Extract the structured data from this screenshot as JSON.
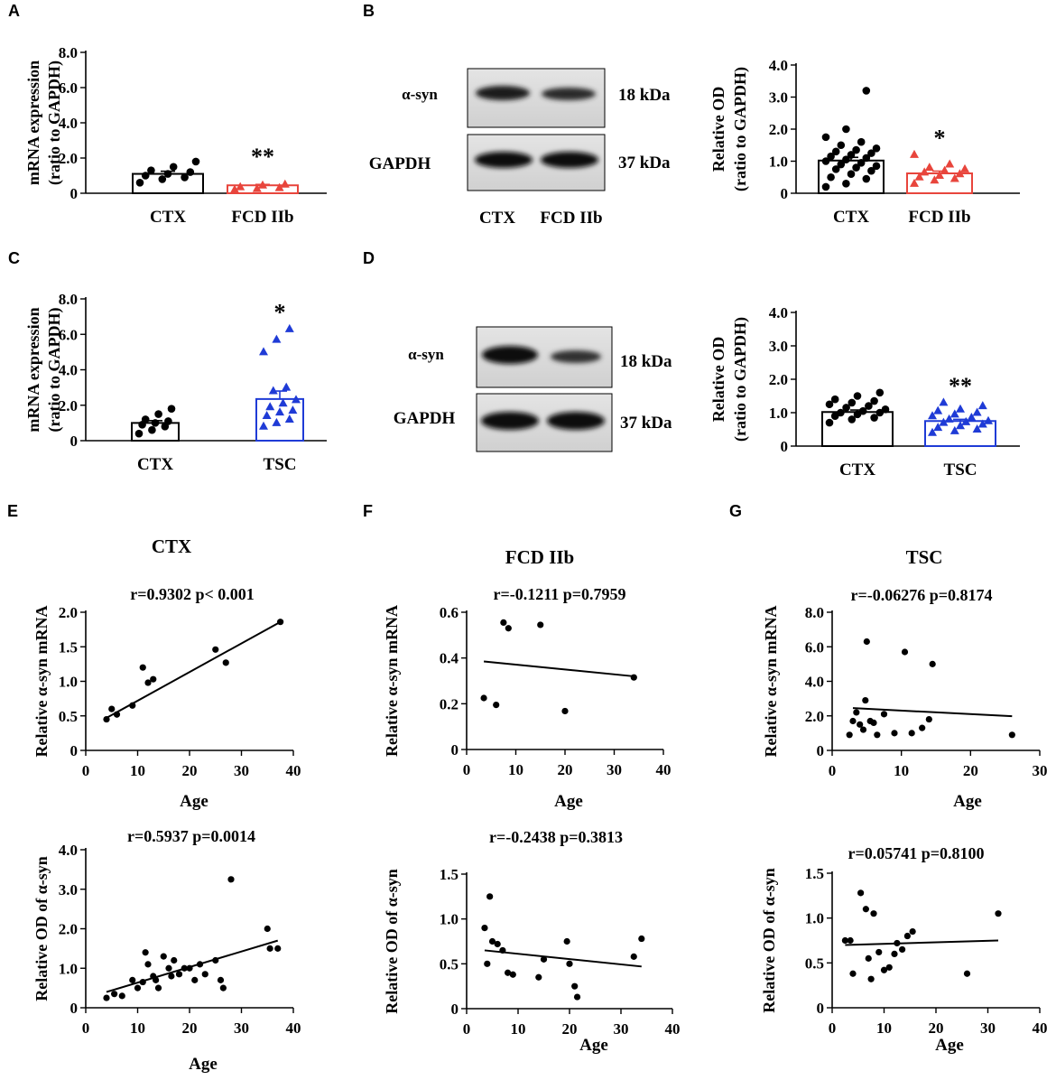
{
  "colors": {
    "black": "#000000",
    "red": "#e8453c",
    "blue": "#1f3bd6",
    "gray": "#d8d8d8"
  },
  "chart_data": [
    {
      "id": "A",
      "type": "bar",
      "panel_label": "A",
      "ylabel_lines": [
        "mRNA expression",
        "(ratio to GAPDH)"
      ],
      "ylim": [
        0,
        8
      ],
      "yticks": [
        0,
        2,
        4,
        6,
        8
      ],
      "ytick_labels": [
        "0",
        "2.0",
        "4.0",
        "6.0",
        "8.0"
      ],
      "categories": [
        "CTX",
        "FCD IIb"
      ],
      "series": [
        {
          "name": "CTX",
          "color": "black",
          "marker": "circle",
          "mean": 1.1,
          "sem": 0.15,
          "points": [
            0.6,
            0.8,
            0.9,
            1.0,
            1.1,
            1.2,
            1.3,
            1.5,
            1.8
          ]
        },
        {
          "name": "FCD IIb",
          "color": "red",
          "marker": "triangle",
          "mean": 0.45,
          "sem": 0.05,
          "points": [
            0.2,
            0.25,
            0.3,
            0.35,
            0.45,
            0.5
          ],
          "sig": "**"
        }
      ]
    },
    {
      "id": "B",
      "type": "bar",
      "panel_label": "B",
      "ylabel_lines": [
        "Relative OD",
        "(ratio to GAPDH)"
      ],
      "ylim": [
        0,
        4
      ],
      "yticks": [
        0,
        1,
        2,
        3,
        4
      ],
      "ytick_labels": [
        "0",
        "1.0",
        "2.0",
        "3.0",
        "4.0"
      ],
      "categories": [
        "CTX",
        "FCD IIb"
      ],
      "series": [
        {
          "name": "CTX",
          "color": "black",
          "marker": "circle",
          "mean": 1.02,
          "sem": 0.1,
          "points": [
            0.2,
            0.3,
            0.45,
            0.5,
            0.6,
            0.7,
            0.75,
            0.8,
            0.85,
            0.9,
            0.95,
            1.0,
            1.05,
            1.1,
            1.15,
            1.2,
            1.25,
            1.3,
            1.35,
            1.4,
            1.5,
            1.6,
            1.75,
            2.0,
            3.2
          ]
        },
        {
          "name": "FCD IIb",
          "color": "red",
          "marker": "triangle",
          "mean": 0.62,
          "sem": 0.07,
          "points": [
            0.3,
            0.4,
            0.45,
            0.5,
            0.55,
            0.6,
            0.65,
            0.7,
            0.75,
            0.8,
            0.9,
            1.2
          ],
          "sig": "*"
        }
      ]
    },
    {
      "id": "C",
      "type": "bar",
      "panel_label": "C",
      "ylabel_lines": [
        "mRNA expression",
        "(ratio to GAPDH)"
      ],
      "ylim": [
        0,
        8
      ],
      "yticks": [
        0,
        2,
        4,
        6,
        8
      ],
      "ytick_labels": [
        "0",
        "2.0",
        "4.0",
        "6.0",
        "8.0"
      ],
      "categories": [
        "CTX",
        "TSC"
      ],
      "series": [
        {
          "name": "CTX",
          "color": "black",
          "marker": "circle",
          "mean": 1.0,
          "sem": 0.13,
          "points": [
            0.4,
            0.6,
            0.8,
            0.9,
            1.0,
            1.1,
            1.2,
            1.5,
            1.8
          ]
        },
        {
          "name": "TSC",
          "color": "blue",
          "marker": "triangle",
          "mean": 2.35,
          "sem": 0.45,
          "points": [
            0.8,
            1.0,
            1.2,
            1.4,
            1.6,
            1.7,
            1.9,
            2.1,
            2.3,
            2.8,
            3.0,
            5.0,
            5.7,
            6.3
          ],
          "sig": "*"
        }
      ]
    },
    {
      "id": "D",
      "type": "bar",
      "panel_label": "D",
      "ylabel_lines": [
        "Relative OD",
        "(ratio to GAPDH)"
      ],
      "ylim": [
        0,
        4
      ],
      "yticks": [
        0,
        1,
        2,
        3,
        4
      ],
      "ytick_labels": [
        "0",
        "1.0",
        "2.0",
        "3.0",
        "4.0"
      ],
      "categories": [
        "CTX",
        "TSC"
      ],
      "series": [
        {
          "name": "CTX",
          "color": "black",
          "marker": "circle",
          "mean": 1.02,
          "sem": 0.06,
          "points": [
            0.7,
            0.8,
            0.85,
            0.9,
            0.95,
            1.0,
            1.0,
            1.05,
            1.1,
            1.15,
            1.2,
            1.25,
            1.3,
            1.35,
            1.4,
            1.5,
            1.6
          ]
        },
        {
          "name": "TSC",
          "color": "blue",
          "marker": "triangle",
          "mean": 0.75,
          "sem": 0.05,
          "points": [
            0.4,
            0.45,
            0.5,
            0.55,
            0.6,
            0.65,
            0.7,
            0.72,
            0.75,
            0.8,
            0.85,
            0.9,
            0.95,
            1.0,
            1.05,
            1.1,
            1.2,
            1.3
          ],
          "sig": "**"
        }
      ]
    },
    {
      "id": "E1",
      "type": "scatter",
      "panel_label": "E",
      "title": "CTX",
      "stats": "r=0.9302    p< 0.001",
      "ylabel": "Relative α-syn mRNA",
      "xlabel": "Age",
      "xlim": [
        0,
        40
      ],
      "xticks": [
        0,
        10,
        20,
        30,
        40
      ],
      "xtick_labels": [
        "0",
        "10",
        "20",
        "30",
        "40"
      ],
      "ylim": [
        0,
        2.0
      ],
      "yticks": [
        0,
        0.5,
        1.0,
        1.5,
        2.0
      ],
      "ytick_labels": [
        "0",
        "0.5",
        "1.0",
        "1.5",
        "2.0"
      ],
      "points": [
        [
          4,
          0.45
        ],
        [
          5,
          0.6
        ],
        [
          6,
          0.52
        ],
        [
          9,
          0.65
        ],
        [
          11,
          1.2
        ],
        [
          12,
          0.98
        ],
        [
          13,
          1.03
        ],
        [
          25,
          1.46
        ],
        [
          27,
          1.27
        ],
        [
          37.5,
          1.86
        ]
      ],
      "fit": [
        [
          4,
          0.47
        ],
        [
          37.5,
          1.86
        ]
      ]
    },
    {
      "id": "E2",
      "type": "scatter",
      "stats": "r=0.5937   p=0.0014",
      "ylabel": "Relative OD of  α-syn",
      "xlabel": "Age",
      "xlim": [
        0,
        40
      ],
      "xticks": [
        0,
        10,
        20,
        30,
        40
      ],
      "xtick_labels": [
        "0",
        "10",
        "20",
        "30",
        "40"
      ],
      "ylim": [
        0,
        4.0
      ],
      "yticks": [
        0,
        1,
        2,
        3,
        4
      ],
      "ytick_labels": [
        "0",
        "1.0",
        "2.0",
        "3.0",
        "4.0"
      ],
      "points": [
        [
          4,
          0.25
        ],
        [
          5.5,
          0.35
        ],
        [
          7,
          0.3
        ],
        [
          9,
          0.7
        ],
        [
          10,
          0.5
        ],
        [
          11,
          0.65
        ],
        [
          11.5,
          1.4
        ],
        [
          12,
          1.1
        ],
        [
          13,
          0.8
        ],
        [
          13.5,
          0.7
        ],
        [
          14,
          0.5
        ],
        [
          15,
          1.3
        ],
        [
          16,
          1.0
        ],
        [
          16.5,
          0.8
        ],
        [
          17,
          1.2
        ],
        [
          18,
          0.85
        ],
        [
          19,
          1.0
        ],
        [
          20,
          1.0
        ],
        [
          21,
          0.7
        ],
        [
          22,
          1.1
        ],
        [
          23,
          0.85
        ],
        [
          25,
          1.2
        ],
        [
          26,
          0.7
        ],
        [
          26.5,
          0.5
        ],
        [
          28,
          3.25
        ],
        [
          35,
          2.0
        ],
        [
          35.5,
          1.5
        ],
        [
          37,
          1.5
        ]
      ],
      "fit": [
        [
          4,
          0.4
        ],
        [
          37,
          1.7
        ]
      ]
    },
    {
      "id": "F1",
      "type": "scatter",
      "panel_label": "F",
      "title": "FCD IIb",
      "stats": "r=-0.1211   p=0.7959",
      "ylabel": "Relative α-syn mRNA",
      "xlabel": "Age",
      "xlim": [
        0,
        40
      ],
      "xticks": [
        0,
        10,
        20,
        30,
        40
      ],
      "xtick_labels": [
        "0",
        "10",
        "20",
        "30",
        "40"
      ],
      "ylim": [
        0,
        0.6
      ],
      "yticks": [
        0,
        0.2,
        0.4,
        0.6
      ],
      "ytick_labels": [
        "0",
        "0.2",
        "0.4",
        "0.6"
      ],
      "points": [
        [
          3.5,
          0.225
        ],
        [
          6,
          0.195
        ],
        [
          7.5,
          0.555
        ],
        [
          8.5,
          0.53
        ],
        [
          15,
          0.545
        ],
        [
          20,
          0.168
        ],
        [
          34,
          0.315
        ]
      ],
      "fit": [
        [
          3.5,
          0.385
        ],
        [
          34,
          0.32
        ]
      ]
    },
    {
      "id": "F2",
      "type": "scatter",
      "stats": "r=-0.2438    p=0.3813",
      "ylabel": "Relative OD of  α-syn",
      "xlabel": "Age",
      "xlim": [
        0,
        40
      ],
      "xticks": [
        0,
        10,
        20,
        30,
        40
      ],
      "xtick_labels": [
        "0",
        "10",
        "20",
        "30",
        "40"
      ],
      "ylim": [
        0,
        1.5
      ],
      "yticks": [
        0,
        0.5,
        1.0,
        1.5
      ],
      "ytick_labels": [
        "0",
        "0.5",
        "1.0",
        "1.5"
      ],
      "points": [
        [
          3.5,
          0.9
        ],
        [
          4,
          0.5
        ],
        [
          4.5,
          1.25
        ],
        [
          5,
          0.75
        ],
        [
          6,
          0.72
        ],
        [
          7,
          0.65
        ],
        [
          8,
          0.4
        ],
        [
          9,
          0.38
        ],
        [
          14,
          0.35
        ],
        [
          15,
          0.55
        ],
        [
          19.5,
          0.75
        ],
        [
          20,
          0.5
        ],
        [
          21,
          0.25
        ],
        [
          21.5,
          0.13
        ],
        [
          32.5,
          0.58
        ],
        [
          34,
          0.78
        ]
      ],
      "fit": [
        [
          3.5,
          0.65
        ],
        [
          34,
          0.47
        ]
      ]
    },
    {
      "id": "G1",
      "type": "scatter",
      "panel_label": "G",
      "title": "TSC",
      "stats": "r=-0.06276  p=0.8174",
      "ylabel": "Relative α-syn mRNA",
      "xlabel": "Age",
      "xlim": [
        0,
        30
      ],
      "xticks": [
        0,
        10,
        20,
        30
      ],
      "xtick_labels": [
        "0",
        "10",
        "20",
        "30"
      ],
      "ylim": [
        0,
        8.0
      ],
      "yticks": [
        0,
        2,
        4,
        6,
        8
      ],
      "ytick_labels": [
        "0",
        "2.0",
        "4.0",
        "6.0",
        "8.0"
      ],
      "points": [
        [
          2.5,
          0.9
        ],
        [
          3,
          1.7
        ],
        [
          3.5,
          2.2
        ],
        [
          4,
          1.5
        ],
        [
          4.5,
          1.2
        ],
        [
          4.8,
          2.9
        ],
        [
          5,
          6.3
        ],
        [
          5.5,
          1.7
        ],
        [
          6,
          1.6
        ],
        [
          6.5,
          0.9
        ],
        [
          7.5,
          2.1
        ],
        [
          9,
          1.0
        ],
        [
          10.5,
          5.7
        ],
        [
          11.5,
          1.0
        ],
        [
          13,
          1.3
        ],
        [
          14,
          1.8
        ],
        [
          14.5,
          5.0
        ],
        [
          26,
          0.9
        ]
      ],
      "fit": [
        [
          3,
          2.45
        ],
        [
          26,
          1.98
        ]
      ]
    },
    {
      "id": "G2",
      "type": "scatter",
      "stats": "r=0.05741  p=0.8100",
      "ylabel": "Relative OD of  α-syn",
      "xlabel": "Age",
      "xlim": [
        0,
        40
      ],
      "xticks": [
        0,
        10,
        20,
        30,
        40
      ],
      "xtick_labels": [
        "0",
        "10",
        "20",
        "30",
        "40"
      ],
      "ylim": [
        0,
        1.5
      ],
      "yticks": [
        0,
        0.5,
        1.0,
        1.5
      ],
      "ytick_labels": [
        "0",
        "0.5",
        "1.0",
        "1.5"
      ],
      "points": [
        [
          2.5,
          0.75
        ],
        [
          3.5,
          0.75
        ],
        [
          4,
          0.38
        ],
        [
          5.5,
          1.28
        ],
        [
          6.5,
          1.1
        ],
        [
          7,
          0.55
        ],
        [
          7.5,
          0.32
        ],
        [
          8,
          1.05
        ],
        [
          9,
          0.62
        ],
        [
          10,
          0.42
        ],
        [
          11,
          0.45
        ],
        [
          12,
          0.6
        ],
        [
          12.5,
          0.72
        ],
        [
          13.5,
          0.65
        ],
        [
          14.5,
          0.8
        ],
        [
          15.5,
          0.85
        ],
        [
          26,
          0.38
        ],
        [
          32,
          1.05
        ]
      ],
      "fit": [
        [
          2.5,
          0.7
        ],
        [
          32,
          0.75
        ]
      ]
    }
  ],
  "blots": [
    {
      "id": "B",
      "rows": [
        {
          "protein": "α-syn",
          "kda": "18 kDa"
        },
        {
          "protein": "GAPDH",
          "kda": "37 kDa"
        }
      ],
      "lanes": [
        "CTX",
        "FCD IIb"
      ]
    },
    {
      "id": "D",
      "rows": [
        {
          "protein": "α-syn",
          "kda": "18 kDa"
        },
        {
          "protein": "GAPDH",
          "kda": "37 kDa"
        }
      ]
    }
  ]
}
